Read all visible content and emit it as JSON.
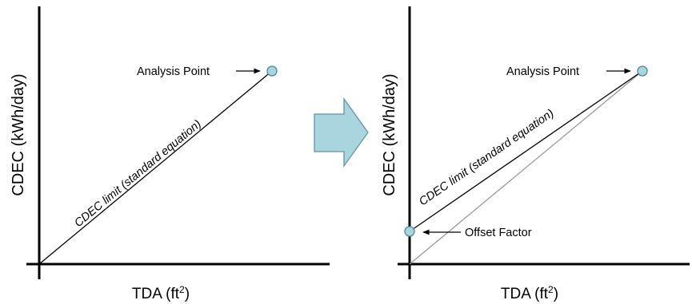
{
  "colors": {
    "point_fill": "#a9d6de",
    "point_stroke": "#4a8a98",
    "reference_line": "#9a9a9a",
    "transition_arrow": "#a9d6de"
  },
  "left_panel": {
    "y_axis_label": "CDEC (kWh/day)",
    "x_axis_label": "TDA (ft",
    "x_axis_unit_superscript": "2",
    "x_axis_label_close": ")",
    "analysis_point_label": "Analysis Point",
    "line_label": "CDEC limit (standard equation)"
  },
  "transition_icon": "right-arrow-icon",
  "right_panel": {
    "y_axis_label": "CDEC (kWh/day)",
    "x_axis_label": "TDA (ft",
    "x_axis_unit_superscript": "2",
    "x_axis_label_close": ")",
    "analysis_point_label": "Analysis Point",
    "line_label": "CDEC limit (standard equation)",
    "offset_label": "Offset Factor"
  }
}
